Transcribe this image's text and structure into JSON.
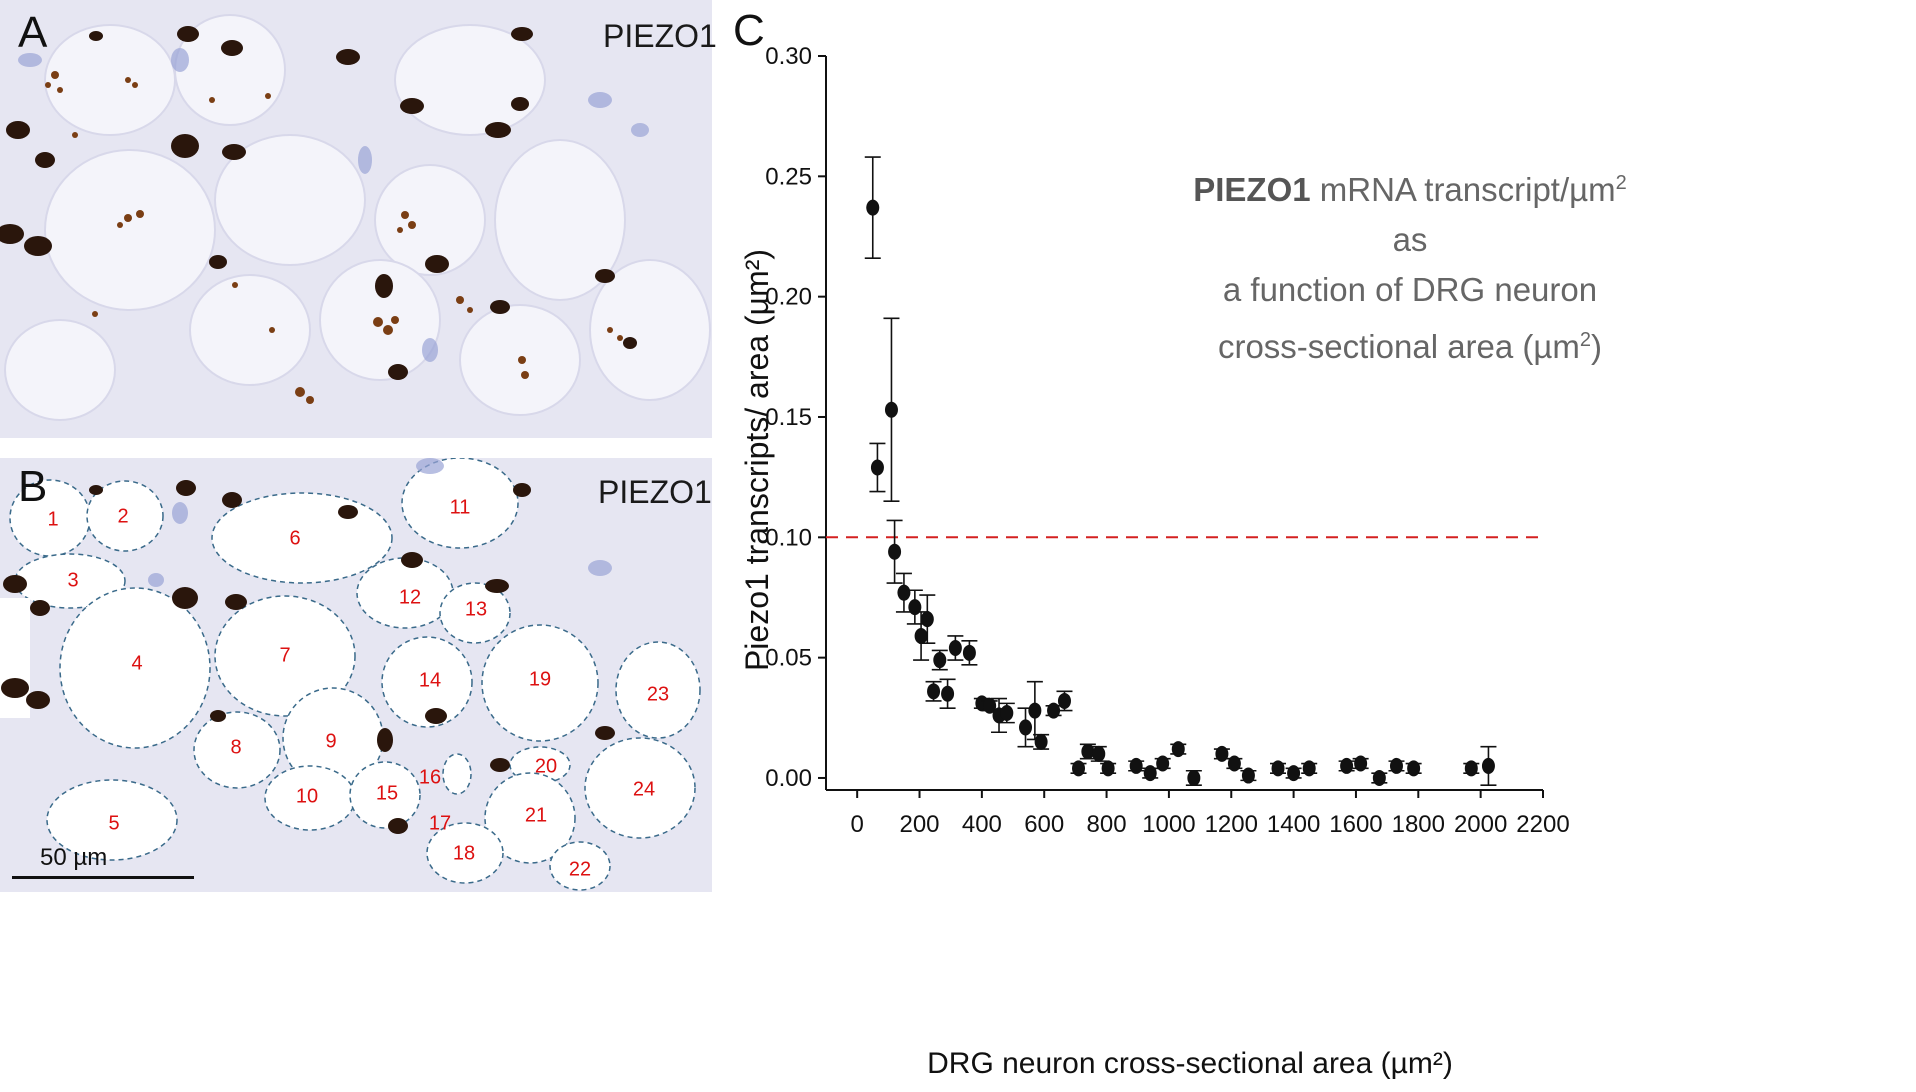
{
  "panels": {
    "a": {
      "label": "A",
      "marker": "PIEZO1"
    },
    "b": {
      "label": "B",
      "marker": "PIEZO1",
      "scale_bar": "50 µm",
      "cells": [
        "1",
        "2",
        "3",
        "4",
        "5",
        "6",
        "7",
        "8",
        "9",
        "10",
        "11",
        "12",
        "13",
        "14",
        "15",
        "16",
        "17",
        "18",
        "19",
        "20",
        "21",
        "22",
        "23",
        "24"
      ]
    },
    "c": {
      "label": "C"
    }
  },
  "caption": {
    "bold": "PIEZO1",
    "line1_rest": " mRNA transcript/µm",
    "sup1": "2",
    "line1_end": " as",
    "line2": "a function of DRG neuron",
    "line3_start": "cross-sectional area (µm",
    "sup2": "2",
    "line3_end": ")"
  },
  "colors": {
    "threshold": "#d42020",
    "points": "#111111",
    "cell_number": "#dd1111",
    "outline": "#3a6a8a",
    "tissue": "#e6e6f2"
  },
  "chart_data": {
    "type": "scatter",
    "title": "",
    "xlabel": "DRG neuron cross-sectional area (µm²)",
    "ylabel": "Piezo1 transcripts/ area (µm²)",
    "xlim": [
      -100,
      2200
    ],
    "ylim": [
      -0.005,
      0.3
    ],
    "x_ticks": [
      "0",
      "200",
      "400",
      "600",
      "800",
      "1000",
      "1200",
      "1400",
      "1600",
      "1800",
      "2000",
      "2200"
    ],
    "y_ticks": [
      "0.00",
      "0.05",
      "0.10",
      "0.15",
      "0.20",
      "0.25",
      "0.30"
    ],
    "threshold": 0.1,
    "series": [
      {
        "name": "PIEZO1",
        "points": [
          [
            50,
            0.237,
            0.021
          ],
          [
            65,
            0.129,
            0.01
          ],
          [
            110,
            0.153,
            0.038
          ],
          [
            120,
            0.094,
            0.013
          ],
          [
            150,
            0.077,
            0.008
          ],
          [
            185,
            0.071,
            0.007
          ],
          [
            205,
            0.059,
            0.01
          ],
          [
            225,
            0.066,
            0.01
          ],
          [
            245,
            0.036,
            0.004
          ],
          [
            265,
            0.049,
            0.004
          ],
          [
            290,
            0.035,
            0.006
          ],
          [
            315,
            0.054,
            0.005
          ],
          [
            360,
            0.052,
            0.005
          ],
          [
            400,
            0.031,
            0.002
          ],
          [
            425,
            0.03,
            0.002
          ],
          [
            455,
            0.026,
            0.007
          ],
          [
            480,
            0.027,
            0.004
          ],
          [
            540,
            0.021,
            0.008
          ],
          [
            570,
            0.028,
            0.012
          ],
          [
            590,
            0.015,
            0.003
          ],
          [
            630,
            0.028,
            0.002
          ],
          [
            665,
            0.032,
            0.004
          ],
          [
            710,
            0.004,
            0.002
          ],
          [
            740,
            0.011,
            0.003
          ],
          [
            775,
            0.01,
            0.003
          ],
          [
            805,
            0.004,
            0.002
          ],
          [
            895,
            0.005,
            0.002
          ],
          [
            940,
            0.002,
            0.002
          ],
          [
            980,
            0.006,
            0.002
          ],
          [
            1030,
            0.012,
            0.002
          ],
          [
            1080,
            0.0,
            0.003
          ],
          [
            1170,
            0.01,
            0.002
          ],
          [
            1210,
            0.006,
            0.002
          ],
          [
            1255,
            0.001,
            0.002
          ],
          [
            1350,
            0.004,
            0.002
          ],
          [
            1400,
            0.002,
            0.002
          ],
          [
            1450,
            0.004,
            0.002
          ],
          [
            1570,
            0.005,
            0.002
          ],
          [
            1615,
            0.006,
            0.002
          ],
          [
            1675,
            0.0,
            0.002
          ],
          [
            1730,
            0.005,
            0.002
          ],
          [
            1785,
            0.004,
            0.002
          ],
          [
            1970,
            0.004,
            0.002
          ],
          [
            2025,
            0.005,
            0.008
          ]
        ]
      }
    ]
  }
}
